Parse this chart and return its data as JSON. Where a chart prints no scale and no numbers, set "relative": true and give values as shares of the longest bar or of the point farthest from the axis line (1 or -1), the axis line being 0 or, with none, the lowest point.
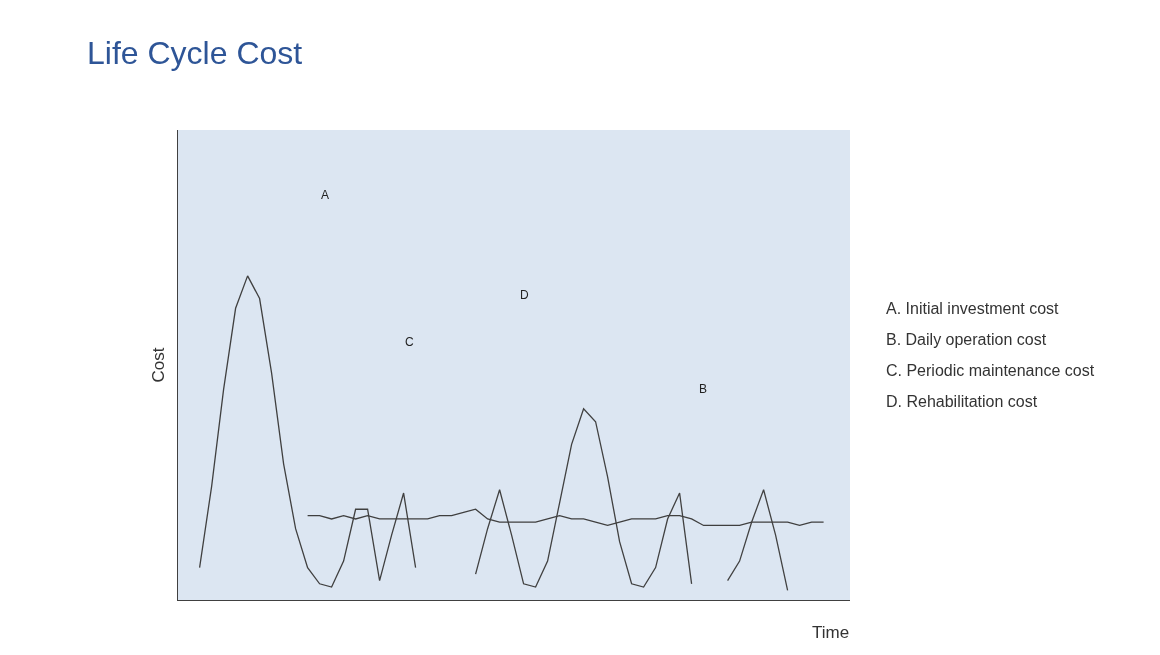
{
  "chart_data": {
    "type": "line",
    "title": "Life Cycle Cost",
    "xlabel": "Time",
    "ylabel": "Cost",
    "relative": true,
    "grid": false,
    "marker": "none",
    "line_style": "solid",
    "categories": [
      null,
      null,
      null,
      null,
      null,
      null,
      null,
      null,
      null,
      null,
      null,
      null,
      null,
      null,
      null,
      null,
      null,
      null,
      null,
      null,
      null,
      null,
      null,
      null,
      null,
      null,
      null,
      null,
      null,
      null,
      null,
      null,
      null,
      null,
      null,
      null,
      null,
      null,
      null,
      null,
      null,
      null,
      null,
      null,
      null,
      null,
      null,
      null,
      null,
      null,
      null,
      null,
      null
    ],
    "series": [
      {
        "color": "#404040",
        "values": [
          0.1,
          0.35,
          0.65,
          0.9,
          1.0,
          0.93,
          0.7,
          0.42,
          0.22,
          0.1,
          0.05,
          0.04,
          0.12,
          0.28,
          0.28,
          0.06,
          0.2,
          0.33,
          0.1,
          null,
          null,
          null,
          null,
          null,
          null,
          null,
          null,
          null,
          null,
          null,
          null,
          null,
          null,
          null,
          null,
          null,
          null,
          null,
          null,
          null,
          null,
          null,
          null,
          null,
          null,
          null,
          null,
          null,
          null,
          null,
          null,
          null,
          null
        ]
      },
      {
        "color": "#414141",
        "values": [
          null,
          null,
          null,
          null,
          null,
          null,
          null,
          null,
          null,
          null,
          null,
          null,
          null,
          null,
          null,
          null,
          null,
          null,
          null,
          null,
          null,
          null,
          null,
          0.08,
          0.22,
          0.34,
          0.2,
          0.05,
          0.04,
          0.12,
          0.3,
          0.48,
          0.59,
          0.55,
          0.38,
          0.18,
          0.05,
          0.04,
          0.1,
          0.25,
          0.33,
          0.05,
          null,
          null,
          null,
          null,
          null,
          null,
          null,
          null,
          null,
          null,
          null
        ]
      },
      {
        "color": "#424242",
        "values": [
          null,
          null,
          null,
          null,
          null,
          null,
          null,
          null,
          null,
          null,
          null,
          null,
          null,
          null,
          null,
          null,
          null,
          null,
          null,
          null,
          null,
          null,
          null,
          null,
          null,
          null,
          null,
          null,
          null,
          null,
          null,
          null,
          null,
          null,
          null,
          null,
          null,
          null,
          null,
          null,
          null,
          null,
          null,
          null,
          0.06,
          0.12,
          0.24,
          0.34,
          0.2,
          0.03,
          null,
          null,
          null
        ]
      },
      {
        "color": "#3f3f3f",
        "values": [
          null,
          null,
          null,
          null,
          null,
          null,
          null,
          null,
          null,
          0.26,
          0.26,
          0.25,
          0.26,
          0.25,
          0.26,
          0.25,
          0.25,
          0.25,
          0.25,
          0.25,
          0.26,
          0.26,
          0.27,
          0.28,
          0.25,
          0.24,
          0.24,
          0.24,
          0.24,
          0.25,
          0.26,
          0.25,
          0.25,
          0.24,
          0.23,
          0.24,
          0.25,
          0.25,
          0.25,
          0.26,
          0.26,
          0.25,
          0.23,
          0.23,
          0.23,
          0.23,
          0.24,
          0.24,
          0.24,
          0.24,
          0.23,
          0.24,
          0.24
        ]
      }
    ],
    "annotations": [
      "A",
      "C",
      "D",
      "B",
      "A. Initial investment cost",
      "B. Daily operation cost",
      "C. Periodic maintenance cost",
      "D. Rehabilitation cost"
    ]
  }
}
